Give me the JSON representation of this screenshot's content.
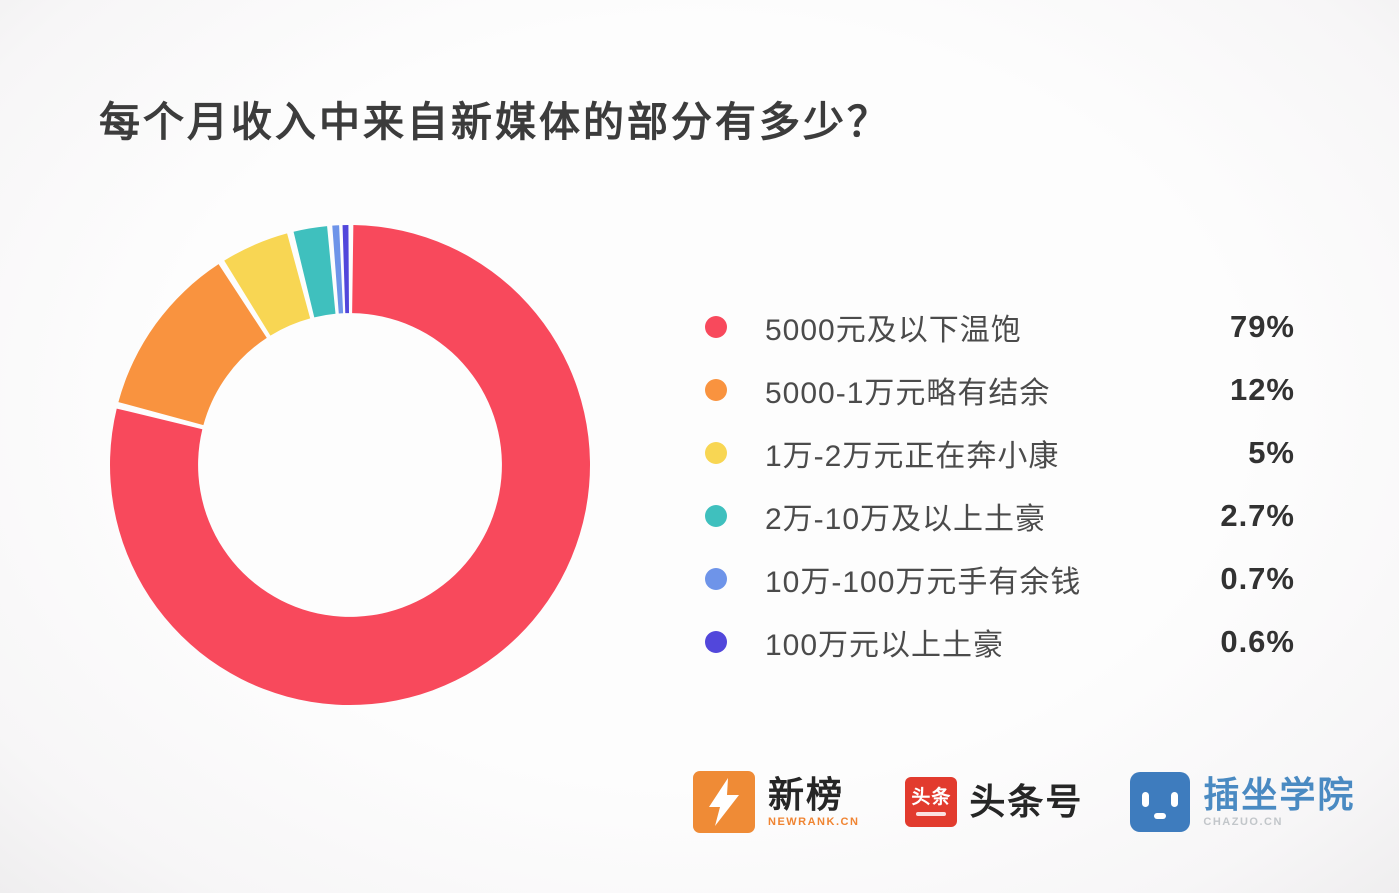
{
  "title": "每个月收入中来自新媒体的部分有多少？",
  "chart_data": {
    "type": "pie",
    "subtype": "donut",
    "title": "每个月收入中来自新媒体的部分有多少？",
    "legend_position": "right",
    "donut": {
      "start_angle_deg": 0,
      "direction": "clockwise",
      "inner_ratio": 0.633
    },
    "segments": [
      {
        "label": "5000元及以下温饱",
        "value": 79,
        "percent_label": "79%",
        "color": "#f8495c"
      },
      {
        "label": "5000-1万元略有结余",
        "value": 12,
        "percent_label": "12%",
        "color": "#f9933f"
      },
      {
        "label": "1万-2万元正在奔小康",
        "value": 5,
        "percent_label": "5%",
        "color": "#f8d653"
      },
      {
        "label": "2万-10万及以上土豪",
        "value": 2.7,
        "percent_label": "2.7%",
        "color": "#3fc0be"
      },
      {
        "label": "10万-100万元手有余钱",
        "value": 0.7,
        "percent_label": "0.7%",
        "color": "#6e94e9"
      },
      {
        "label": "100万元以上土豪",
        "value": 0.6,
        "percent_label": "0.6%",
        "color": "#5247db"
      }
    ]
  },
  "footer": {
    "newrank": {
      "name": "新榜",
      "subtext": "NEWRANK.CN",
      "icon_color": "#ef8b36"
    },
    "toutiao": {
      "name": "头条号",
      "badge_text": "头条",
      "badge_color": "#e23b2e"
    },
    "chazuo": {
      "name": "插坐学院",
      "subtext": "CHAZUO.CN",
      "icon_color": "#3e7cbe"
    }
  }
}
